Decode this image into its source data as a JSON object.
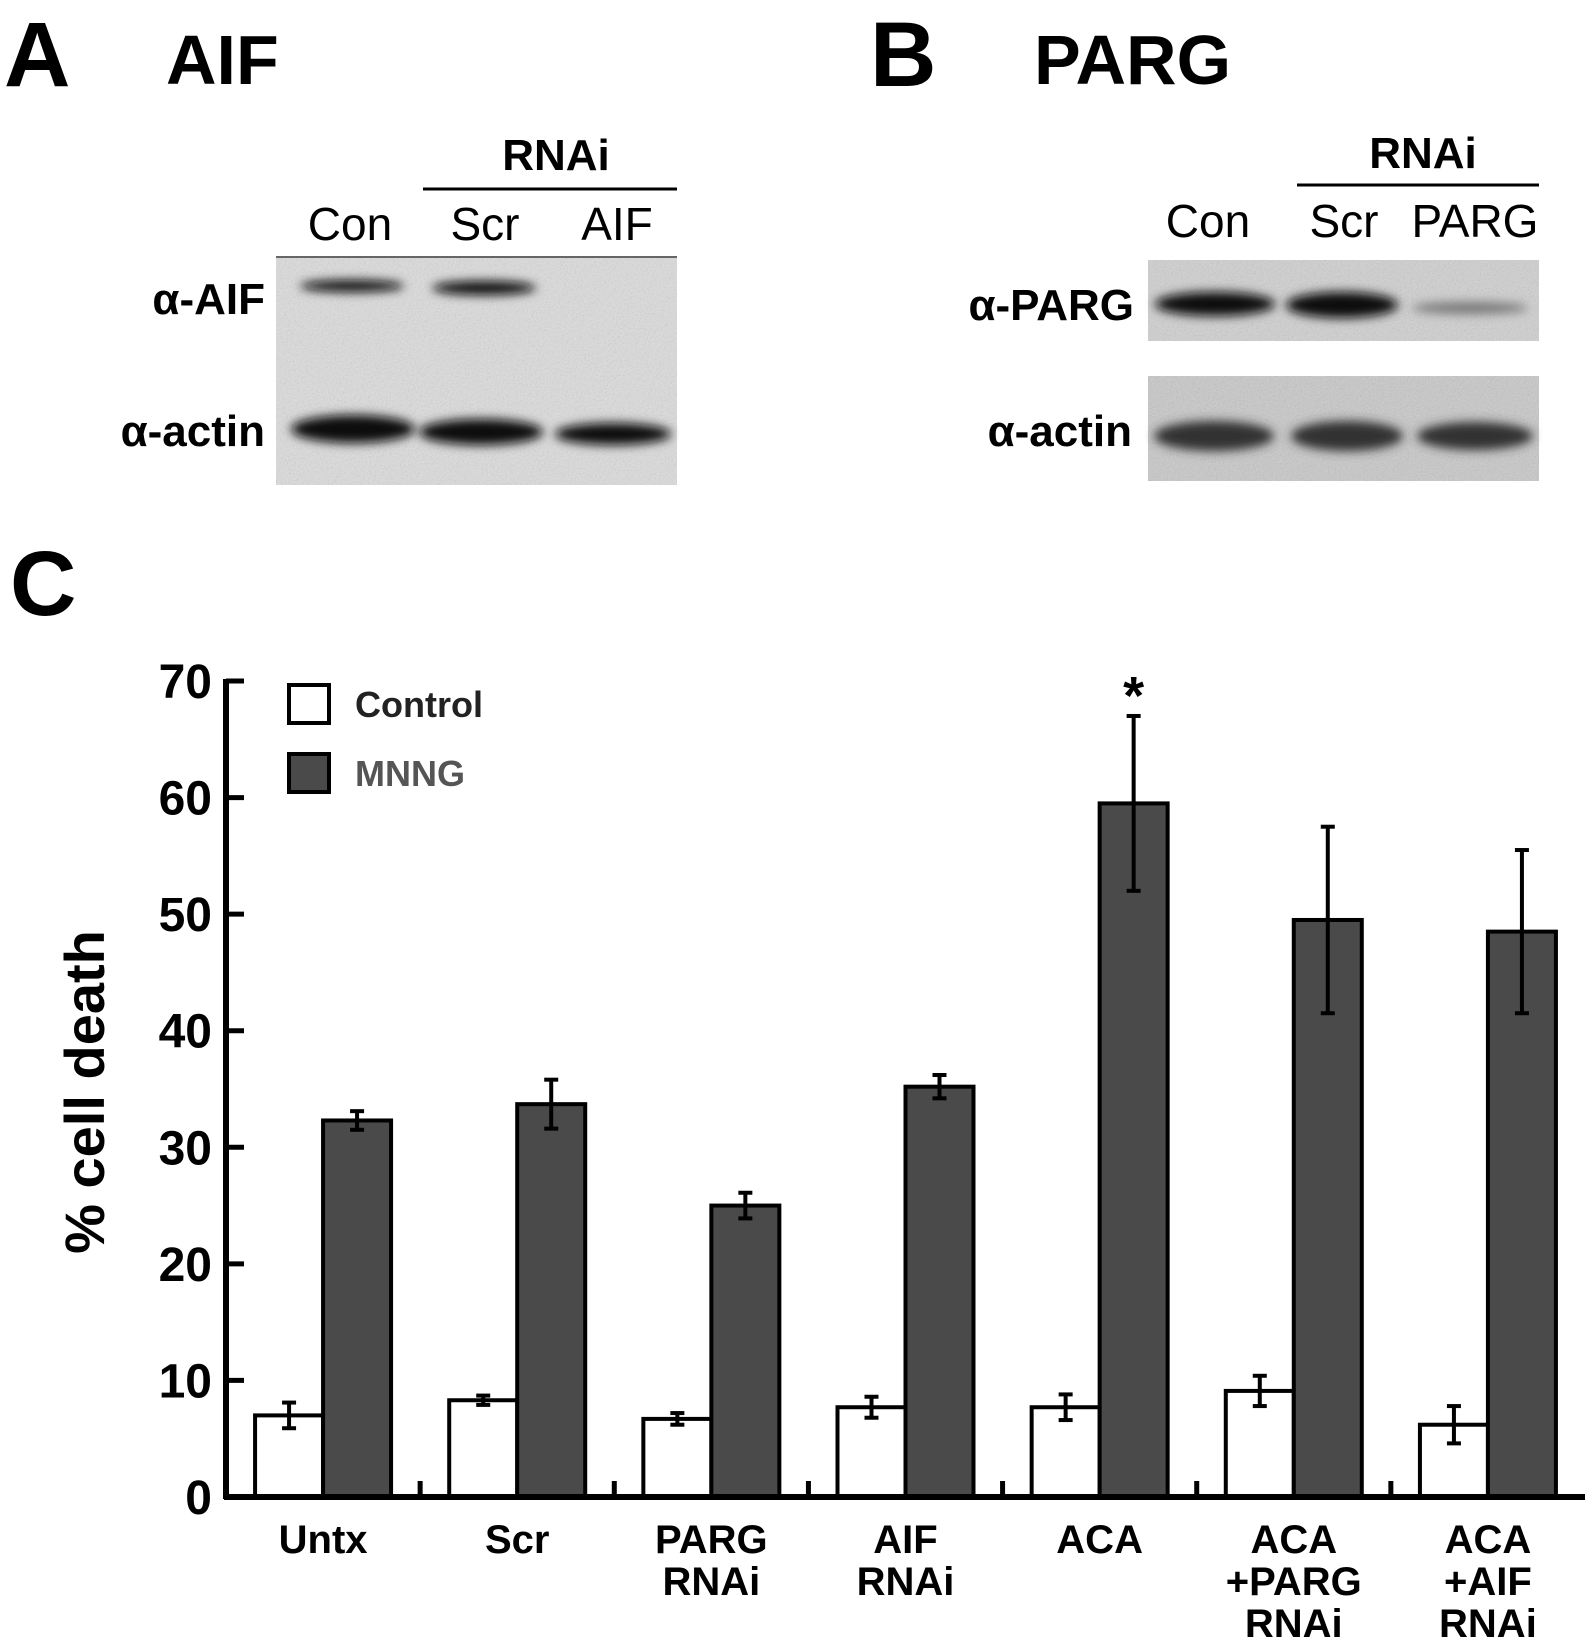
{
  "panels": {
    "a": {
      "letter": "A",
      "title": "AIF",
      "group_label": "RNAi",
      "lanes": [
        "Con",
        "Scr",
        "AIF"
      ],
      "rows": [
        "α-AIF",
        "α-actin"
      ]
    },
    "b": {
      "letter": "B",
      "title": "PARG",
      "group_label": "RNAi",
      "lanes": [
        "Con",
        "Scr",
        "PARG"
      ],
      "rows": [
        "α-PARG",
        "α-actin"
      ]
    },
    "c": {
      "letter": "C"
    }
  },
  "chart_data": {
    "type": "bar",
    "y_label": "% cell death",
    "categories": [
      [
        "Untx"
      ],
      [
        "Scr"
      ],
      [
        "PARG",
        "RNAi"
      ],
      [
        "AIF",
        "RNAi"
      ],
      [
        "ACA"
      ],
      [
        "ACA",
        "+PARG",
        "RNAi"
      ],
      [
        "ACA",
        "+AIF",
        "RNAi"
      ]
    ],
    "series": [
      {
        "name": "Control",
        "color": "#ffffff",
        "values": [
          7,
          8.3,
          6.7,
          7.7,
          7.7,
          9.1,
          6.2
        ],
        "errors": [
          1.1,
          0.4,
          0.5,
          0.9,
          1.1,
          1.3,
          1.6
        ]
      },
      {
        "name": "MNNG",
        "color": "#4a4a4a",
        "values": [
          32.3,
          33.7,
          25,
          35.2,
          59.5,
          49.5,
          48.5
        ],
        "errors": [
          0.8,
          2.1,
          1.1,
          1.0,
          7.5,
          8,
          7
        ]
      }
    ],
    "annotation": "*",
    "ylim": [
      0,
      70
    ],
    "yticks": [
      0,
      10,
      20,
      30,
      40,
      50,
      60,
      70
    ],
    "grid": false,
    "legend": "top-left"
  }
}
